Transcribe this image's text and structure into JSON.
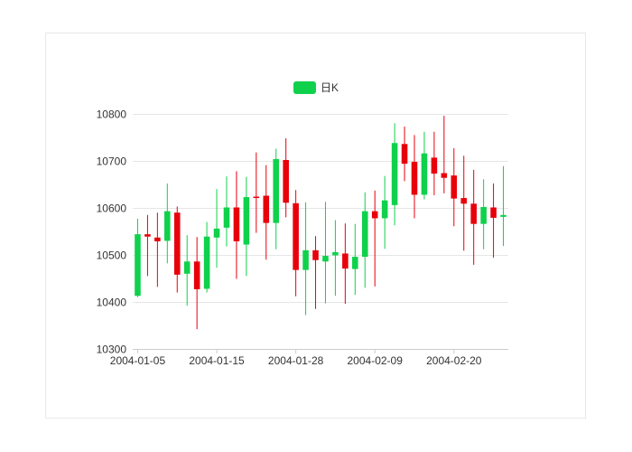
{
  "chart_data": {
    "type": "candlestick",
    "legend": {
      "label": "日K",
      "position": "top-center"
    },
    "colors": {
      "up": "#0fd14c",
      "down": "#e8000b",
      "grid": "#e6e6e6",
      "axis": "#cccccc"
    },
    "yticks": [
      10300,
      10400,
      10500,
      10600,
      10700,
      10800
    ],
    "ylim": [
      10300,
      10800
    ],
    "xtick_labels": [
      {
        "label": "2004-01-05",
        "index": 0
      },
      {
        "label": "2004-01-15",
        "index": 8
      },
      {
        "label": "2004-01-28",
        "index": 16
      },
      {
        "label": "2004-02-09",
        "index": 24
      },
      {
        "label": "2004-02-20",
        "index": 32
      }
    ],
    "grid": true,
    "candles": [
      {
        "open": 10413,
        "close": 10544,
        "low": 10410,
        "high": 10577
      },
      {
        "open": 10544,
        "close": 10539,
        "low": 10455,
        "high": 10585
      },
      {
        "open": 10537,
        "close": 10529,
        "low": 10432,
        "high": 10590
      },
      {
        "open": 10530,
        "close": 10593,
        "low": 10482,
        "high": 10652
      },
      {
        "open": 10590,
        "close": 10458,
        "low": 10420,
        "high": 10603
      },
      {
        "open": 10460,
        "close": 10486,
        "low": 10392,
        "high": 10542
      },
      {
        "open": 10486,
        "close": 10427,
        "low": 10342,
        "high": 10538
      },
      {
        "open": 10428,
        "close": 10539,
        "low": 10420,
        "high": 10570
      },
      {
        "open": 10537,
        "close": 10556,
        "low": 10473,
        "high": 10640
      },
      {
        "open": 10558,
        "close": 10601,
        "low": 10518,
        "high": 10667
      },
      {
        "open": 10601,
        "close": 10529,
        "low": 10449,
        "high": 10678
      },
      {
        "open": 10522,
        "close": 10623,
        "low": 10455,
        "high": 10666
      },
      {
        "open": 10624,
        "close": 10623,
        "low": 10547,
        "high": 10718
      },
      {
        "open": 10626,
        "close": 10568,
        "low": 10490,
        "high": 10691
      },
      {
        "open": 10568,
        "close": 10704,
        "low": 10512,
        "high": 10726
      },
      {
        "open": 10702,
        "close": 10611,
        "low": 10580,
        "high": 10748
      },
      {
        "open": 10610,
        "close": 10468,
        "low": 10412,
        "high": 10638
      },
      {
        "open": 10468,
        "close": 10510,
        "low": 10372,
        "high": 10612
      },
      {
        "open": 10510,
        "close": 10489,
        "low": 10385,
        "high": 10540
      },
      {
        "open": 10486,
        "close": 10498,
        "low": 10397,
        "high": 10613
      },
      {
        "open": 10499,
        "close": 10506,
        "low": 10413,
        "high": 10574
      },
      {
        "open": 10503,
        "close": 10471,
        "low": 10396,
        "high": 10567
      },
      {
        "open": 10470,
        "close": 10496,
        "low": 10415,
        "high": 10566
      },
      {
        "open": 10496,
        "close": 10593,
        "low": 10430,
        "high": 10633
      },
      {
        "open": 10593,
        "close": 10578,
        "low": 10433,
        "high": 10637
      },
      {
        "open": 10578,
        "close": 10616,
        "low": 10513,
        "high": 10668
      },
      {
        "open": 10606,
        "close": 10738,
        "low": 10563,
        "high": 10780
      },
      {
        "open": 10736,
        "close": 10694,
        "low": 10657,
        "high": 10773
      },
      {
        "open": 10698,
        "close": 10628,
        "low": 10578,
        "high": 10755
      },
      {
        "open": 10628,
        "close": 10716,
        "low": 10618,
        "high": 10762
      },
      {
        "open": 10707,
        "close": 10673,
        "low": 10627,
        "high": 10762
      },
      {
        "open": 10674,
        "close": 10664,
        "low": 10631,
        "high": 10796
      },
      {
        "open": 10669,
        "close": 10620,
        "low": 10561,
        "high": 10727
      },
      {
        "open": 10621,
        "close": 10609,
        "low": 10509,
        "high": 10711
      },
      {
        "open": 10609,
        "close": 10566,
        "low": 10479,
        "high": 10681
      },
      {
        "open": 10566,
        "close": 10602,
        "low": 10512,
        "high": 10661
      },
      {
        "open": 10601,
        "close": 10579,
        "low": 10494,
        "high": 10652
      },
      {
        "open": 10581,
        "close": 10585,
        "low": 10519,
        "high": 10689
      }
    ]
  }
}
